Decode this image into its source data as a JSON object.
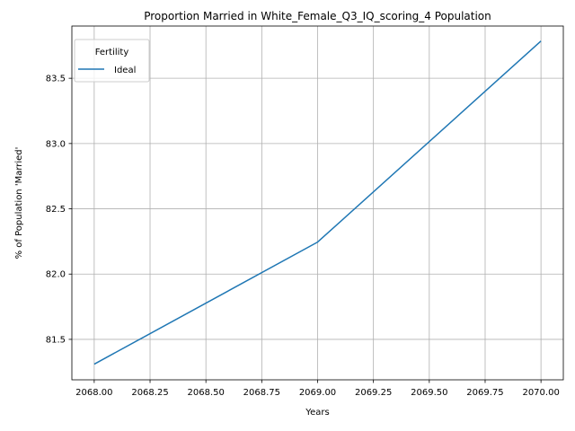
{
  "chart_data": {
    "type": "line",
    "title": "Proportion Married in White_Female_Q3_IQ_scoring_4 Population",
    "xlabel": "Years",
    "ylabel": "% of Population 'Married'",
    "xlim": [
      2067.9,
      2070.1
    ],
    "ylim": [
      81.19,
      83.9
    ],
    "xticks": [
      "2068.00",
      "2068.25",
      "2068.50",
      "2068.75",
      "2069.00",
      "2069.25",
      "2069.50",
      "2069.75",
      "2070.00"
    ],
    "yticks": [
      "81.5",
      "82.0",
      "82.5",
      "83.0",
      "83.5"
    ],
    "grid": true,
    "legend": {
      "title": "Fertility",
      "placement": "top-left"
    },
    "series": [
      {
        "name": "Ideal",
        "color": "#1f77b4",
        "x": [
          2068,
          2069,
          2070
        ],
        "y": [
          81.31,
          82.245,
          83.785
        ]
      }
    ]
  }
}
